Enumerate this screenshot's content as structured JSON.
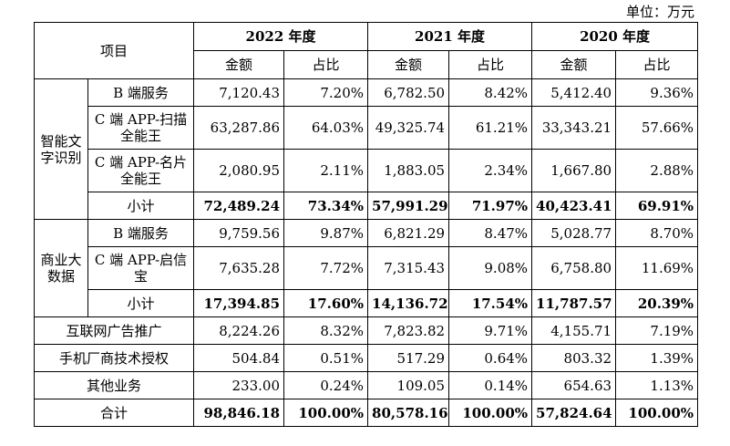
{
  "unit_note": "单位：万元",
  "headers": {
    "item": "项目",
    "years": [
      "2022 年度",
      "2021 年度",
      "2020 年度"
    ],
    "amount": "金额",
    "ratio": "占比"
  },
  "groups": [
    {
      "name": "智能文字识别",
      "rows": [
        {
          "label": "B 端服务",
          "values": [
            "7,120.43",
            "7.20%",
            "6,782.50",
            "8.42%",
            "5,412.40",
            "9.36%"
          ]
        },
        {
          "label": "C 端 APP-扫描全能王",
          "values": [
            "63,287.86",
            "64.03%",
            "49,325.74",
            "61.21%",
            "33,343.21",
            "57.66%"
          ]
        },
        {
          "label": "C 端 APP-名片全能王",
          "values": [
            "2,080.95",
            "2.11%",
            "1,883.05",
            "2.34%",
            "1,667.80",
            "2.88%"
          ]
        },
        {
          "label": "小计",
          "values": [
            "72,489.24",
            "73.34%",
            "57,991.29",
            "71.97%",
            "40,423.41",
            "69.91%"
          ]
        }
      ]
    },
    {
      "name": "商业大数据",
      "rows": [
        {
          "label": "B 端服务",
          "values": [
            "9,759.56",
            "9.87%",
            "6,821.29",
            "8.47%",
            "5,028.77",
            "8.70%"
          ]
        },
        {
          "label": "C 端 APP-启信宝",
          "values": [
            "7,635.28",
            "7.72%",
            "7,315.43",
            "9.08%",
            "6,758.80",
            "11.69%"
          ]
        },
        {
          "label": "小计",
          "values": [
            "17,394.85",
            "17.60%",
            "14,136.72",
            "17.54%",
            "11,787.57",
            "20.39%"
          ]
        }
      ]
    }
  ],
  "single_rows": [
    {
      "label": "互联网广告推广",
      "values": [
        "8,224.26",
        "8.32%",
        "7,823.82",
        "9.71%",
        "4,155.71",
        "7.19%"
      ]
    },
    {
      "label": "手机厂商技术授权",
      "values": [
        "504.84",
        "0.51%",
        "517.29",
        "0.64%",
        "803.32",
        "1.39%"
      ]
    },
    {
      "label": "其他业务",
      "values": [
        "233.00",
        "0.24%",
        "109.05",
        "0.14%",
        "654.63",
        "1.13%"
      ]
    }
  ],
  "total": {
    "label": "合计",
    "values": [
      "98,846.18",
      "100.00%",
      "80,578.16",
      "100.00%",
      "57,824.64",
      "100.00%"
    ]
  }
}
